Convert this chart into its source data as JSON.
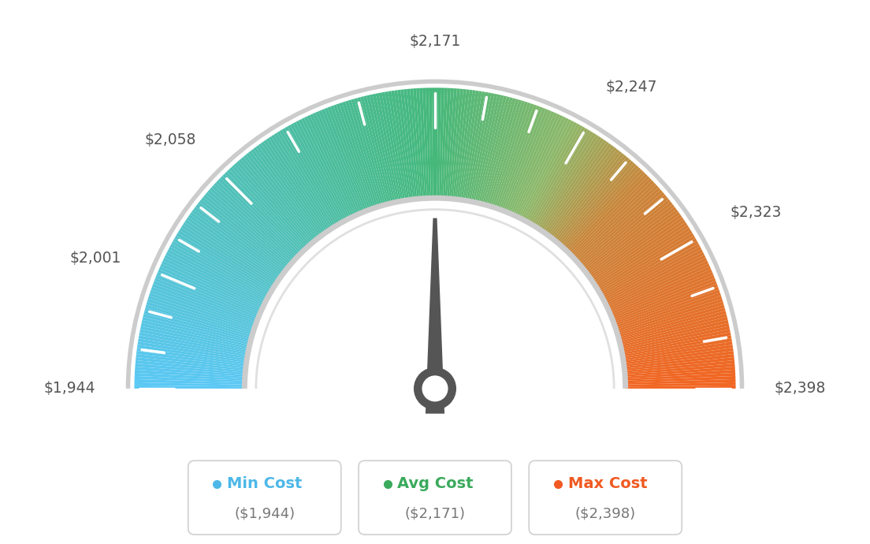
{
  "min_val": 1944,
  "avg_val": 2171,
  "max_val": 2398,
  "tick_labels": [
    "$1,944",
    "$2,001",
    "$2,058",
    "$2,171",
    "$2,247",
    "$2,323",
    "$2,398"
  ],
  "tick_values": [
    1944,
    2001,
    2058,
    2171,
    2247,
    2323,
    2398
  ],
  "legend": [
    {
      "label": "Min Cost",
      "value": "($1,944)",
      "color": "#4db8e8"
    },
    {
      "label": "Avg Cost",
      "value": "($2,171)",
      "color": "#3aaa5c"
    },
    {
      "label": "Max Cost",
      "value": "($2,398)",
      "color": "#f05a22"
    }
  ],
  "needle_value": 2171,
  "background_color": "#ffffff",
  "color_stops": [
    [
      0.0,
      "#5bc8f5"
    ],
    [
      0.5,
      "#45b87a"
    ],
    [
      0.65,
      "#8db86a"
    ],
    [
      0.75,
      "#c9853a"
    ],
    [
      1.0,
      "#f26522"
    ]
  ],
  "outer_arc_color": "#cccccc",
  "inner_arc_color": "#cccccc",
  "needle_color": "#555555",
  "needle_circle_color": "#555555"
}
